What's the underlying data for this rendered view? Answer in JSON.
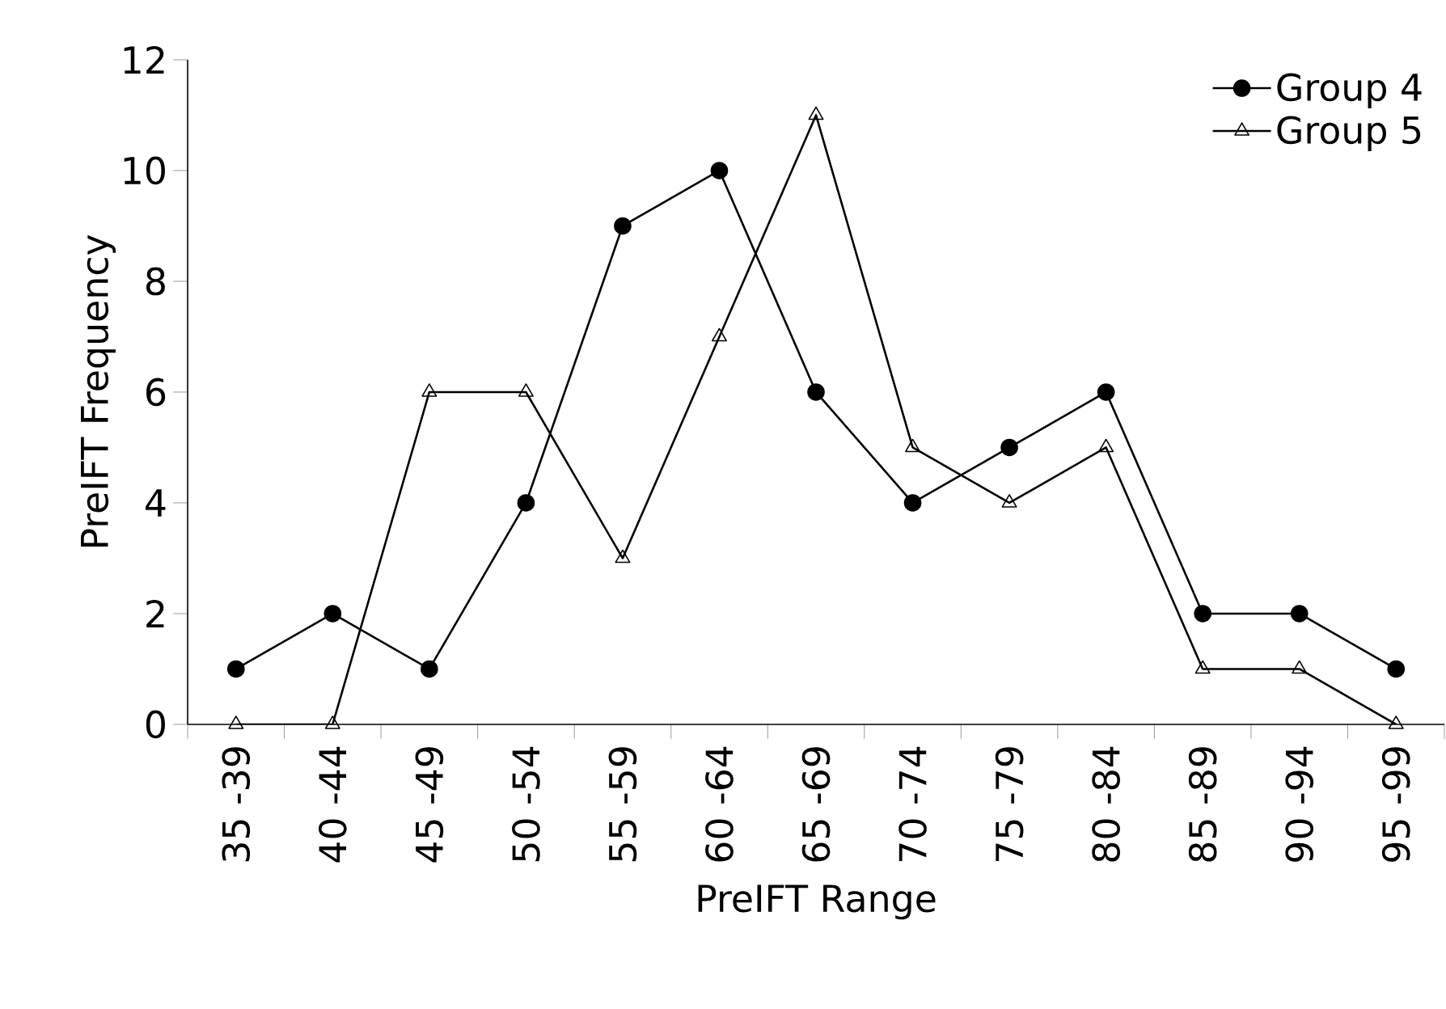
{
  "chart_data": {
    "type": "line",
    "xlabel": "PreIFT Range",
    "ylabel": "PreIFT Frequency",
    "categories": [
      "35 -39",
      "40 -44",
      "45 -49",
      "50 -54",
      "55 -59",
      "60 -64",
      "65 -69",
      "70 -74",
      "75 -79",
      "80 -84",
      "85 -89",
      "90 -94",
      "95 -99"
    ],
    "series": [
      {
        "name": "Group 4",
        "color": "#000000",
        "marker": "circle",
        "values": [
          1,
          2,
          1,
          4,
          9,
          10,
          6,
          4,
          5,
          6,
          2,
          2,
          1
        ]
      },
      {
        "name": "Group 5",
        "color": "#000000",
        "marker": "triangle",
        "values": [
          0,
          0,
          6,
          6,
          3,
          7,
          11,
          5,
          4,
          5,
          1,
          1,
          0
        ]
      }
    ],
    "ylim": [
      0,
      12
    ],
    "yticks": [
      0,
      2,
      4,
      6,
      8,
      10,
      12
    ],
    "grid": false,
    "legend": "top right",
    "line_style": "solid"
  }
}
